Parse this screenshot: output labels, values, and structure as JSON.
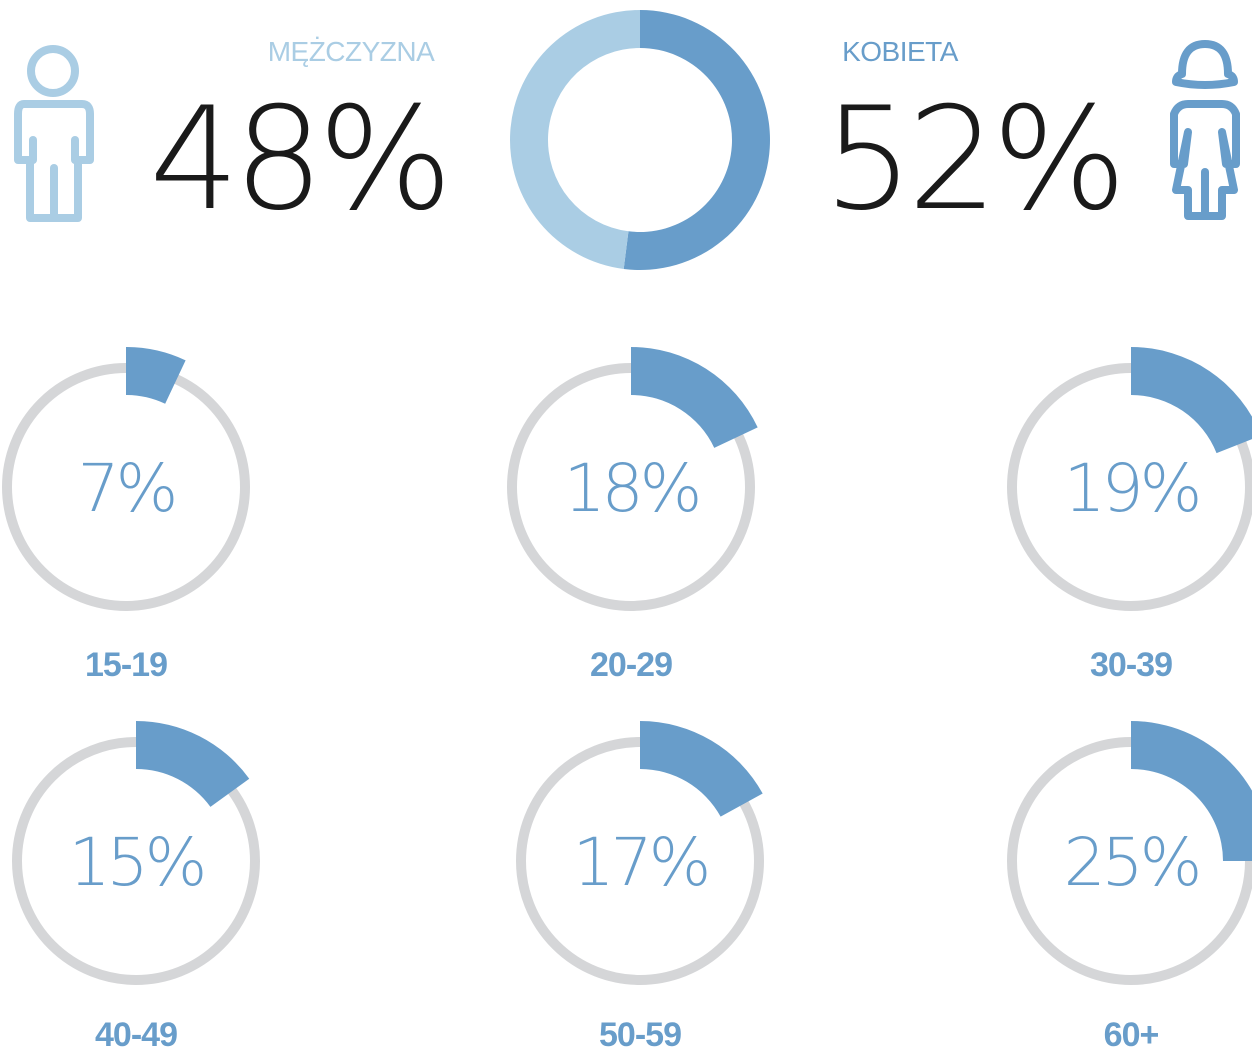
{
  "gender": {
    "male": {
      "label": "MĘŻCZYZNA",
      "value_text": "48%"
    },
    "female": {
      "label": "KOBIETA",
      "value_text": "52%"
    }
  },
  "age_groups": [
    {
      "label": "15-19",
      "value_text": "7%"
    },
    {
      "label": "20-29",
      "value_text": "18%"
    },
    {
      "label": "30-39",
      "value_text": "19%"
    },
    {
      "label": "40-49",
      "value_text": "15%"
    },
    {
      "label": "50-59",
      "value_text": "17%"
    },
    {
      "label": "60+",
      "value_text": "25%"
    }
  ],
  "colors": {
    "male": "#aacde4",
    "female": "#689dca",
    "accent": "#689dca",
    "track": "#d5d6d8",
    "big_number": "#1a1a1a"
  },
  "chart_data": [
    {
      "type": "pie",
      "categories": [
        "MĘŻCZYZNA",
        "KOBIETA"
      ],
      "values": [
        48,
        52
      ]
    },
    {
      "type": "pie",
      "categories": [
        "15-19",
        "20-29",
        "30-39",
        "40-49",
        "50-59",
        "60+"
      ],
      "values": [
        7,
        18,
        19,
        15,
        17,
        25
      ]
    }
  ]
}
